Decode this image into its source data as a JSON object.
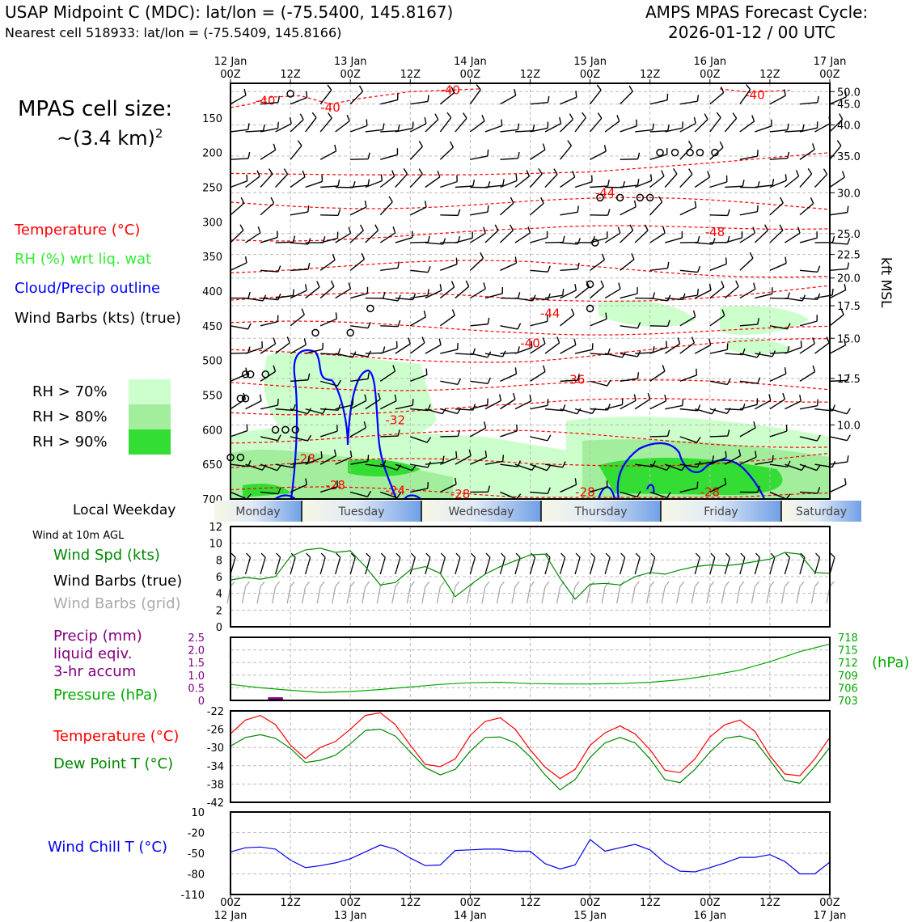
{
  "header": {
    "station_line": "USAP Midpoint C (MDC): lat/lon = (-75.5400, 145.8167)",
    "cell_line": "Nearest cell 518933: lat/lon = (-75.5409, 145.8166)",
    "cycle_title": "AMPS MPAS Forecast Cycle:",
    "cycle_time": "2026-01-12 / 00 UTC"
  },
  "legend": {
    "cell_size_label": "MPAS cell size:",
    "cell_size_value": "~(3.4 km)",
    "cell_size_exp": "2",
    "temperature": "Temperature (°C)",
    "rh": "RH (%) wrt liq. wat",
    "cloud": "Cloud/Precip outline",
    "wind": "Wind Barbs (kts) (true)",
    "rh70": "RH > 70%",
    "rh80": "RH > 80%",
    "rh90": "RH > 90%",
    "weekday_label": "Local Weekday",
    "wind10m": "Wind at 10m AGL",
    "wind_spd": "Wind Spd (kts)",
    "wind_barbs_true": "Wind Barbs (true)",
    "wind_barbs_grid": "Wind Barbs (grid)",
    "precip_1": "Precip (mm)",
    "precip_2": "liquid eqiv.",
    "precip_3": "3-hr accum",
    "pressure": "Pressure (hPa)",
    "temp2": "Temperature (°C)",
    "dewpoint": "Dew Point T (°C)",
    "windchill": "Wind Chill T (°C)",
    "hpa_unit": "(hPa)",
    "kft_label": "kft MSL"
  },
  "colors": {
    "temperature": "#ff0000",
    "rh": "#33ee33",
    "cloud": "#0000ff",
    "pressure": "#00aa00",
    "dewpoint": "#008800",
    "precip": "#800080",
    "windchill": "#0000ee",
    "grid_barbs": "#aaaaaa",
    "rh70": "#ccffcc",
    "rh80": "#a3ee9d",
    "rh90": "#33dd33"
  },
  "chart_data": {
    "time_axis": {
      "x": [
        0,
        12,
        24,
        36,
        48,
        60,
        72,
        84,
        96,
        108,
        120
      ],
      "top_labels": [
        [
          "12 Jan",
          "00Z"
        ],
        [
          "",
          "12Z"
        ],
        [
          "13 Jan",
          "00Z"
        ],
        [
          "",
          "12Z"
        ],
        [
          "14 Jan",
          "00Z"
        ],
        [
          "",
          "12Z"
        ],
        [
          "15 Jan",
          "00Z"
        ],
        [
          "",
          "12Z"
        ],
        [
          "16 Jan",
          "00Z"
        ],
        [
          "",
          "12Z"
        ],
        [
          "17 Jan",
          "00Z"
        ]
      ],
      "bottom_labels": [
        [
          "00Z",
          "12 Jan"
        ],
        [
          "12Z",
          ""
        ],
        [
          "00Z",
          "13 Jan"
        ],
        [
          "12Z",
          ""
        ],
        [
          "00Z",
          "14 Jan"
        ],
        [
          "12Z",
          ""
        ],
        [
          "00Z",
          "15 Jan"
        ],
        [
          "12Z",
          ""
        ],
        [
          "00Z",
          "16 Jan"
        ],
        [
          "12Z",
          ""
        ],
        [
          "00Z",
          "17 Jan"
        ]
      ],
      "range": [
        0,
        120
      ],
      "unit": "forecast hour"
    },
    "weekdays": [
      "Monday",
      "Tuesday",
      "Wednesday",
      "Thursday",
      "Friday",
      "Saturday"
    ],
    "sounding": {
      "type": "contour",
      "y_pressure_ticks": [
        150,
        200,
        250,
        300,
        350,
        400,
        450,
        500,
        550,
        600,
        650,
        700
      ],
      "y_kft_ticks": [
        {
          "p": 112,
          "label": "50.0"
        },
        {
          "p": 130,
          "label": "45.0"
        },
        {
          "p": 160,
          "label": "40.0"
        },
        {
          "p": 205,
          "label": "35.0"
        },
        {
          "p": 258,
          "label": "30.0"
        },
        {
          "p": 317,
          "label": "25.0"
        },
        {
          "p": 347,
          "label": "22.5"
        },
        {
          "p": 381,
          "label": "20.0"
        },
        {
          "p": 421,
          "label": "17.5"
        },
        {
          "p": 468,
          "label": "15.0"
        },
        {
          "p": 526,
          "label": "12.5"
        },
        {
          "p": 593,
          "label": "10.0"
        }
      ],
      "ylim": [
        100,
        700
      ],
      "temp_contour_labels": [
        {
          "t": 7,
          "p": 125,
          "label": "-40"
        },
        {
          "t": 20,
          "p": 135,
          "label": "-40"
        },
        {
          "t": 44,
          "p": 110,
          "label": "-40"
        },
        {
          "t": 105,
          "p": 117,
          "label": "-40"
        },
        {
          "t": 75,
          "p": 258,
          "label": "-44"
        },
        {
          "t": 97,
          "p": 315,
          "label": "-48"
        },
        {
          "t": 64,
          "p": 432,
          "label": "-44"
        },
        {
          "t": 60,
          "p": 475,
          "label": "-40"
        },
        {
          "t": 69,
          "p": 528,
          "label": "-36"
        },
        {
          "t": 33,
          "p": 586,
          "label": "-32"
        },
        {
          "t": 15,
          "p": 642,
          "label": "-28"
        },
        {
          "t": 21,
          "p": 680,
          "label": "-28"
        },
        {
          "t": 33,
          "p": 688,
          "label": "-24"
        },
        {
          "t": 46,
          "p": 693,
          "label": "-28"
        },
        {
          "t": 71,
          "p": 690,
          "label": "-28"
        },
        {
          "t": 96,
          "p": 690,
          "label": "-28"
        }
      ]
    },
    "wind10m": {
      "type": "line",
      "ylim": [
        0,
        12
      ],
      "yticks": [
        0,
        2,
        4,
        6,
        8,
        10,
        12
      ],
      "x": [
        0,
        3,
        6,
        9,
        12,
        15,
        18,
        21,
        24,
        27,
        30,
        33,
        36,
        39,
        42,
        45,
        48,
        51,
        54,
        57,
        60,
        63,
        66,
        69,
        72,
        75,
        78,
        81,
        84,
        87,
        90,
        93,
        96,
        99,
        102,
        105,
        108,
        111,
        114,
        117,
        120
      ],
      "values": [
        5.6,
        5.9,
        5.7,
        6.0,
        8.4,
        9.2,
        9.4,
        8.9,
        9.1,
        7.2,
        5.0,
        5.3,
        6.8,
        7.2,
        6.4,
        3.6,
        5.0,
        6.3,
        7.2,
        7.9,
        8.6,
        8.7,
        5.8,
        3.3,
        5.1,
        5.2,
        5.0,
        6.0,
        6.5,
        6.3,
        6.8,
        7.2,
        7.4,
        7.3,
        7.5,
        7.8,
        8.1,
        8.9,
        8.7,
        6.5,
        6.4
      ]
    },
    "precip_pressure": {
      "type": "line",
      "precip_ylim": [
        0,
        2.5
      ],
      "precip_yticks": [
        "0",
        "0.5",
        "1.0",
        "1.5",
        "2.0",
        "2.5"
      ],
      "pressure_ylim": [
        703,
        718
      ],
      "pressure_yticks": [
        "703",
        "706",
        "709",
        "712",
        "715",
        "718"
      ],
      "x": [
        0,
        6,
        12,
        18,
        24,
        30,
        36,
        42,
        48,
        54,
        60,
        66,
        72,
        78,
        84,
        90,
        96,
        102,
        108,
        114,
        120
      ],
      "pressure": [
        706.8,
        706.0,
        705.4,
        704.9,
        705.1,
        705.6,
        706.2,
        706.8,
        707.2,
        707.3,
        707.0,
        706.9,
        706.9,
        707.0,
        707.3,
        707.9,
        708.9,
        710.2,
        712.2,
        714.6,
        716.4
      ],
      "precip": [
        {
          "x0": 7.5,
          "x1": 10.5,
          "value": 0.06
        }
      ]
    },
    "temp_dewpoint": {
      "type": "line",
      "ylim": [
        -42,
        -22
      ],
      "yticks": [
        -22,
        -26,
        -30,
        -34,
        -38,
        -42
      ],
      "x": [
        0,
        3,
        6,
        9,
        12,
        15,
        18,
        21,
        24,
        27,
        30,
        33,
        36,
        39,
        42,
        45,
        48,
        51,
        54,
        57,
        60,
        63,
        66,
        69,
        72,
        75,
        78,
        81,
        84,
        87,
        90,
        93,
        96,
        99,
        102,
        105,
        108,
        111,
        114,
        117,
        120
      ],
      "temperature": [
        -27,
        -24,
        -23,
        -25,
        -29.5,
        -32.4,
        -30,
        -28.7,
        -26,
        -23,
        -22.4,
        -25,
        -29.5,
        -33.7,
        -34.2,
        -32.5,
        -27.4,
        -24.3,
        -23.5,
        -26,
        -30.5,
        -34.3,
        -36.8,
        -34.8,
        -29.5,
        -26.8,
        -25.3,
        -27,
        -30.5,
        -35,
        -35.5,
        -32.5,
        -27.7,
        -25,
        -24,
        -26.5,
        -31.8,
        -35.8,
        -36.2,
        -32.5,
        -27.8
      ],
      "dewpoint": [
        -29.7,
        -27.8,
        -27.2,
        -28,
        -30.2,
        -33.3,
        -32.8,
        -31.7,
        -29.2,
        -26.3,
        -26,
        -27.5,
        -31,
        -34.4,
        -36,
        -34.8,
        -30.8,
        -27.8,
        -27.7,
        -29,
        -32,
        -36,
        -39.3,
        -37,
        -32.2,
        -29,
        -27.8,
        -29,
        -32.5,
        -37,
        -37.7,
        -34.8,
        -31,
        -28,
        -27.5,
        -28.5,
        -32.8,
        -37.2,
        -37.8,
        -34.2,
        -30
      ]
    },
    "windchill": {
      "type": "line",
      "ylim": [
        -110,
        10
      ],
      "yticks": [
        10,
        -20,
        -50,
        -80,
        -110
      ],
      "x": [
        0,
        3,
        6,
        9,
        12,
        15,
        18,
        21,
        24,
        27,
        30,
        33,
        36,
        39,
        42,
        45,
        48,
        51,
        54,
        57,
        60,
        63,
        66,
        69,
        72,
        75,
        78,
        81,
        84,
        87,
        90,
        93,
        96,
        99,
        102,
        105,
        108,
        111,
        114,
        117,
        120
      ],
      "values": [
        -48,
        -42,
        -41,
        -44,
        -60,
        -71,
        -68,
        -64,
        -58,
        -48,
        -38,
        -44,
        -57,
        -68,
        -67,
        -46,
        -45,
        -44,
        -44,
        -47,
        -47,
        -65,
        -73,
        -67,
        -30,
        -47,
        -42,
        -37,
        -45,
        -64,
        -76,
        -77,
        -71,
        -64,
        -56,
        -56,
        -52,
        -62,
        -80,
        -80,
        -63
      ]
    }
  }
}
